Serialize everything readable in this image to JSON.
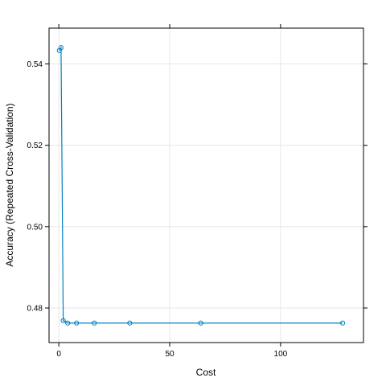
{
  "chart_data": {
    "type": "line",
    "title": "",
    "xlabel": "Cost",
    "ylabel": "Accuracy (Repeated Cross-Validation)",
    "xlim": [
      -4.4,
      137.4
    ],
    "ylim": [
      0.4715,
      0.5488
    ],
    "x_ticks": [
      0,
      50,
      100
    ],
    "x_tick_labels": [
      "0",
      "50",
      "100"
    ],
    "y_ticks": [
      0.48,
      0.5,
      0.52,
      0.54
    ],
    "y_tick_labels": [
      "0.48",
      "0.50",
      "0.52",
      "0.54"
    ],
    "grid": true,
    "series": [
      {
        "x": [
          0.25,
          1,
          2,
          4,
          8,
          16,
          32,
          64,
          128
        ],
        "y": [
          0.5433,
          0.544,
          0.4769,
          0.4763,
          0.4763,
          0.4763,
          0.4763,
          0.4763,
          0.4763
        ],
        "color": "#0080C0"
      }
    ]
  },
  "colors": {
    "series": "#0080C0",
    "grid": "#E6E6E6",
    "frame": "#000000"
  }
}
